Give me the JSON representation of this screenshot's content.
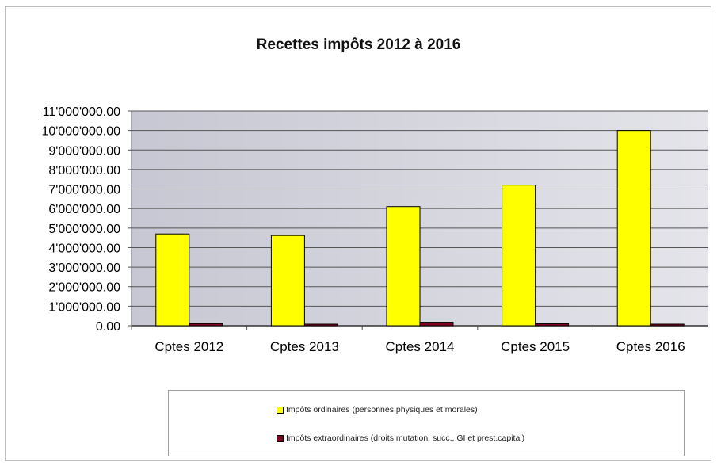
{
  "chart_data": {
    "type": "bar",
    "title": "Recettes impôts 2012 à 2016",
    "categories": [
      "Cptes 2012",
      "Cptes 2013",
      "Cptes 2014",
      "Cptes 2015",
      "Cptes 2016"
    ],
    "series": [
      {
        "name": "Impôts ordinaires (personnes physiques et morales)",
        "color": "#ffff00",
        "values": [
          4700000,
          4620000,
          6100000,
          7200000,
          10000000
        ]
      },
      {
        "name": "Impôts extraordinaires (droits mutation, succ., GI et prest.capital)",
        "color": "#800020",
        "values": [
          110000,
          60000,
          180000,
          100000,
          50000
        ]
      }
    ],
    "ylim": [
      0,
      11000000
    ],
    "yticks": [
      "0.00",
      "1'000'000.00",
      "2'000'000.00",
      "3'000'000.00",
      "4'000'000.00",
      "5'000'000.00",
      "6'000'000.00",
      "7'000'000.00",
      "8'000'000.00",
      "9'000'000.00",
      "10'000'000.00",
      "11'000'000.00"
    ],
    "grid": true,
    "legend_position": "bottom",
    "plot_background": "#cfcfd8"
  }
}
